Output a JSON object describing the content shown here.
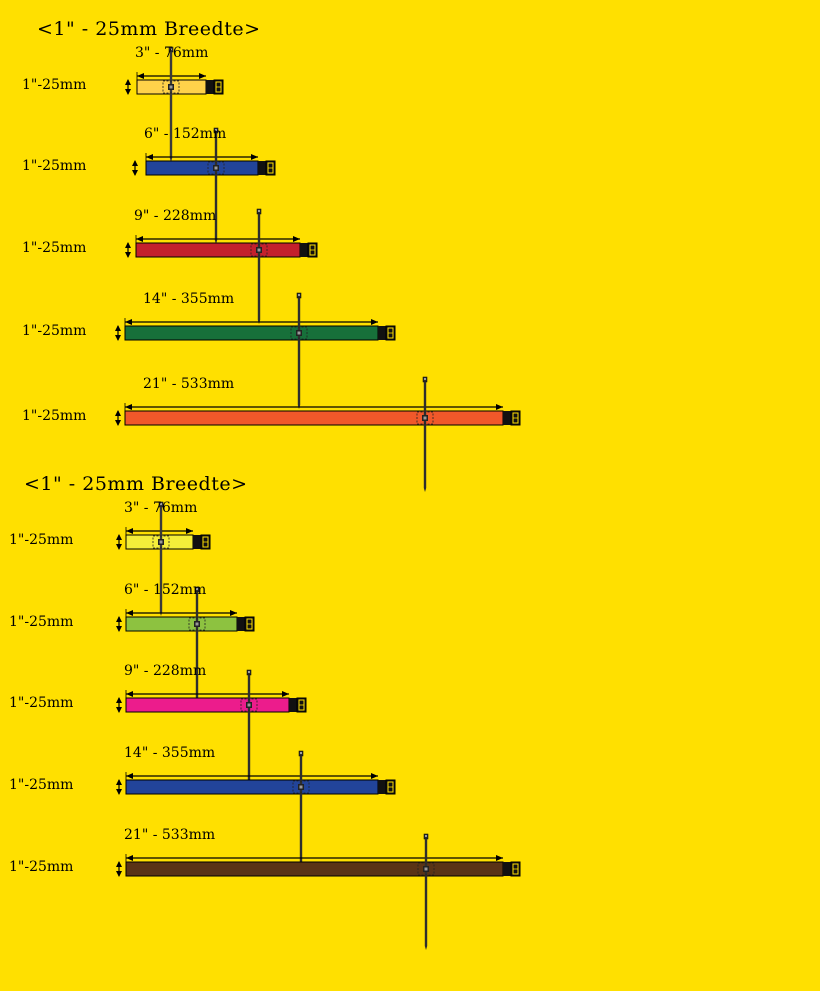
{
  "sections": [
    {
      "title": "<1\" - 25mm Breedte>",
      "items": [
        {
          "length_label": "3\"  - 76mm",
          "width_label": "1\"-25mm",
          "color": "#FFD24A",
          "tie_color": "#3A3A3A",
          "length_mm": 76
        },
        {
          "length_label": "6\"  - 152mm",
          "width_label": "1\"-25mm",
          "color": "#22449A",
          "tie_color": "#2E2E2E",
          "length_mm": 152
        },
        {
          "length_label": "9\" - 228mm",
          "width_label": "1\"-25mm",
          "color": "#C4202C",
          "tie_color": "#2E2E2E",
          "length_mm": 228
        },
        {
          "length_label": "14\" - 355mm",
          "width_label": "1\"-25mm",
          "color": "#17703A",
          "tie_color": "#2E2E2E",
          "length_mm": 355
        },
        {
          "length_label": "21\" - 533mm",
          "width_label": "1\"-25mm",
          "color": "#F0582A",
          "tie_color": "#2E2E2E",
          "length_mm": 533
        }
      ]
    },
    {
      "title": "<1\" - 25mm Breedte>",
      "items": [
        {
          "length_label": "3\" - 76mm",
          "width_label": "1\"-25mm",
          "color": "#F4EE3A",
          "tie_color": "#3A3A3A",
          "length_mm": 76
        },
        {
          "length_label": "6\" - 152mm",
          "width_label": "1\"-25mm",
          "color": "#8DC240",
          "tie_color": "#2E2E2E",
          "length_mm": 152
        },
        {
          "length_label": "9\" - 228mm",
          "width_label": "1\"-25mm",
          "color": "#EC1C8C",
          "tie_color": "#2E2E2E",
          "length_mm": 228
        },
        {
          "length_label": "14\" - 355mm",
          "width_label": "1\"-25mm",
          "color": "#22449A",
          "tie_color": "#2E2E2E",
          "length_mm": 355
        },
        {
          "length_label": "21\" - 533mm",
          "width_label": "1\"-25mm",
          "color": "#5A3416",
          "tie_color": "#2E2E2E",
          "length_mm": 533
        }
      ]
    }
  ]
}
